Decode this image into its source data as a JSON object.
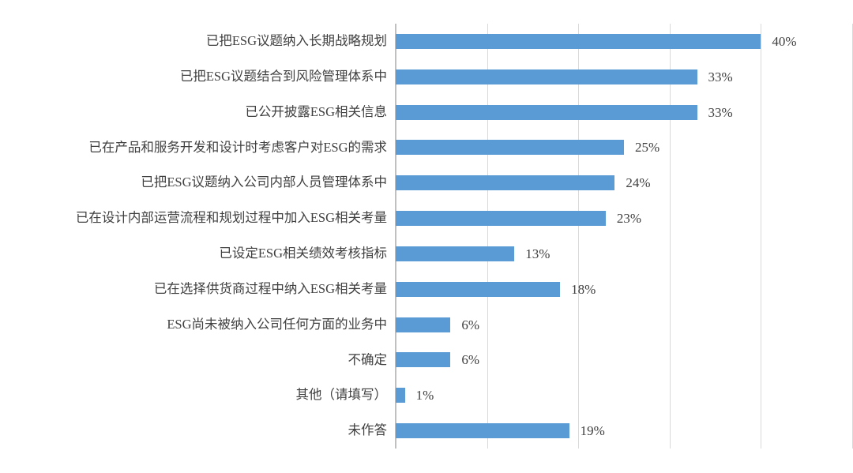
{
  "chart_data": {
    "type": "bar",
    "orientation": "horizontal",
    "title": "",
    "xlabel": "",
    "ylabel": "",
    "categories": [
      "已把ESG议题纳入长期战略规划",
      "已把ESG议题结合到风险管理体系中",
      "已公开披露ESG相关信息",
      "已在产品和服务开发和设计时考虑客户对ESG的需求",
      "已把ESG议题纳入公司内部人员管理体系中",
      "已在设计内部运营流程和规划过程中加入ESG相关考量",
      "已设定ESG相关绩效考核指标",
      "已在选择供货商过程中纳入ESG相关考量",
      "ESG尚未被纳入公司任何方面的业务中",
      "不确定",
      "其他（请填写）",
      "未作答"
    ],
    "values": [
      40,
      33,
      33,
      25,
      24,
      23,
      13,
      18,
      6,
      6,
      1,
      19
    ],
    "value_labels": [
      "40%",
      "33%",
      "33%",
      "25%",
      "24%",
      "23%",
      "13%",
      "18%",
      "6%",
      "6%",
      "1%",
      "19%"
    ],
    "xlim": [
      0,
      50
    ],
    "grid": true,
    "grid_interval": 10,
    "legend": "none",
    "colors": {
      "bar": "#5B9BD5",
      "gridline": "#D9D9D9",
      "axis_line": "#C0C0C0",
      "text": "#404040"
    }
  }
}
